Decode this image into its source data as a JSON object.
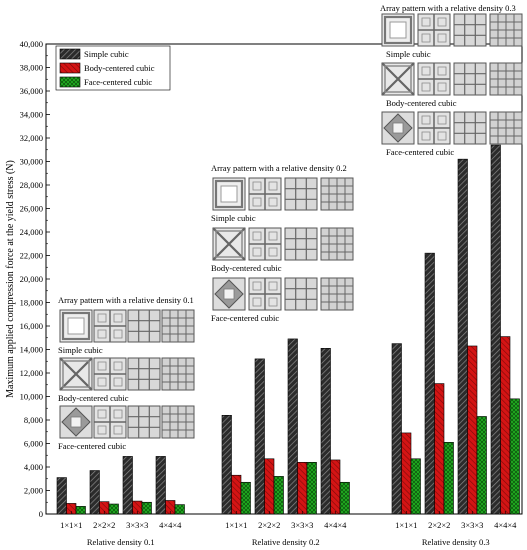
{
  "chart_data": {
    "type": "bar",
    "ylabel": "Maximum applied compression force at the yield stress (N)",
    "ylim": [
      0,
      40000
    ],
    "yticks": [
      0,
      2000,
      4000,
      6000,
      8000,
      10000,
      12000,
      14000,
      16000,
      18000,
      20000,
      22000,
      24000,
      26000,
      28000,
      30000,
      32000,
      34000,
      36000,
      38000,
      40000
    ],
    "ytick_labels": [
      "0",
      "2,000",
      "4,000",
      "6,000",
      "8,000",
      "10,000",
      "12,000",
      "14,000",
      "16,000",
      "18,000",
      "20,000",
      "22,000",
      "24,000",
      "26,000",
      "28,000",
      "30,000",
      "32,000",
      "34,000",
      "36,000",
      "38,000",
      "40,000"
    ],
    "categories": [
      "1×1×1",
      "2×2×2",
      "3×3×3",
      "4×4×4"
    ],
    "groups": [
      {
        "label": "Relative density 0.1",
        "series": [
          {
            "name": "Simple cubic",
            "values": [
              3100,
              3700,
              4900,
              4900
            ]
          },
          {
            "name": "Body-centered cubic",
            "values": [
              900,
              1050,
              1100,
              1150
            ]
          },
          {
            "name": "Face-centered cubic",
            "values": [
              650,
              850,
              1000,
              800
            ]
          }
        ]
      },
      {
        "label": "Relative density 0.2",
        "series": [
          {
            "name": "Simple cubic",
            "values": [
              8400,
              13200,
              14900,
              14100
            ]
          },
          {
            "name": "Body-centered cubic",
            "values": [
              3300,
              4700,
              4400,
              4600
            ]
          },
          {
            "name": "Face-centered cubic",
            "values": [
              2700,
              3200,
              4400,
              2700
            ]
          }
        ]
      },
      {
        "label": "Relative density 0.3",
        "series": [
          {
            "name": "Simple cubic",
            "values": [
              14500,
              22200,
              30200,
              31400
            ]
          },
          {
            "name": "Body-centered cubic",
            "values": [
              6900,
              11100,
              14300,
              15100
            ]
          },
          {
            "name": "Face-centered cubic",
            "values": [
              4700,
              6100,
              8300,
              9800
            ]
          }
        ]
      }
    ],
    "legend": {
      "position": "top-left",
      "items": [
        "Simple cubic",
        "Body-centered cubic",
        "Face-centered cubic"
      ]
    },
    "annotations": [
      {
        "title": "Array pattern with a relative density 0.1",
        "rows": [
          "Simple cubic",
          "Body-centered cubic",
          "Face-centered cubic"
        ]
      },
      {
        "title": "Array pattern with a relative density 0.2",
        "rows": [
          "Simple cubic",
          "Body-centered cubic",
          "Face-centered cubic"
        ]
      },
      {
        "title": "Array pattern with a relative density 0.3",
        "rows": [
          "Simple cubic",
          "Body-centered cubic",
          "Face-centered cubic"
        ]
      }
    ],
    "colors": {
      "simple": "#2b2b2b",
      "body": "#d41414",
      "face": "#22b222"
    }
  }
}
